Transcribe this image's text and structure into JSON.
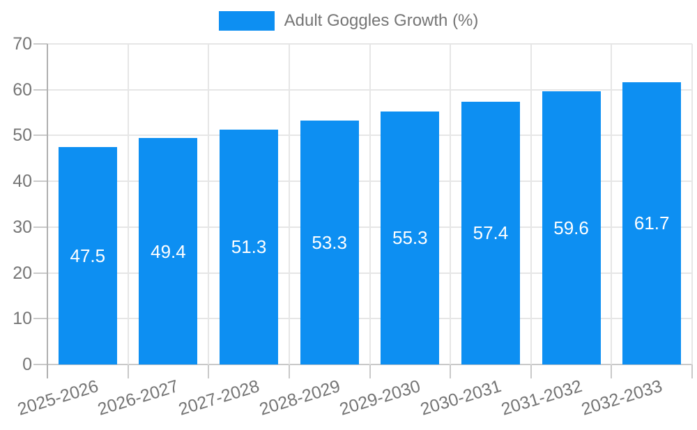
{
  "chart_data": {
    "type": "bar",
    "title": "",
    "legend": "Adult Goggles Growth (%)",
    "legend_position": "top",
    "categories": [
      "2025-2026",
      "2026-2027",
      "2027-2028",
      "2028-2029",
      "2029-2030",
      "2030-2031",
      "2031-2032",
      "2032-2033"
    ],
    "series": [
      {
        "name": "Adult Goggles Growth (%)",
        "values": [
          47.5,
          49.4,
          51.3,
          53.3,
          55.3,
          57.4,
          59.6,
          61.7
        ]
      }
    ],
    "value_labels": [
      "47.5",
      "49.4",
      "51.3",
      "53.3",
      "55.3",
      "57.4",
      "59.6",
      "61.7"
    ],
    "xlabel": "",
    "ylabel": "",
    "ylim": [
      0,
      70
    ],
    "ytick_step": 10,
    "ytick_labels": [
      "0",
      "10",
      "20",
      "30",
      "40",
      "50",
      "60",
      "70"
    ],
    "grid": true,
    "x_label_rotation_deg": -17,
    "colors": {
      "bar": "#0d8ff2",
      "grid": "#e6e6e6",
      "axis": "#b0b0b0",
      "tick": "#c9c9c9",
      "text": "#757575",
      "value_text": "#ffffff",
      "background": "#ffffff"
    }
  }
}
